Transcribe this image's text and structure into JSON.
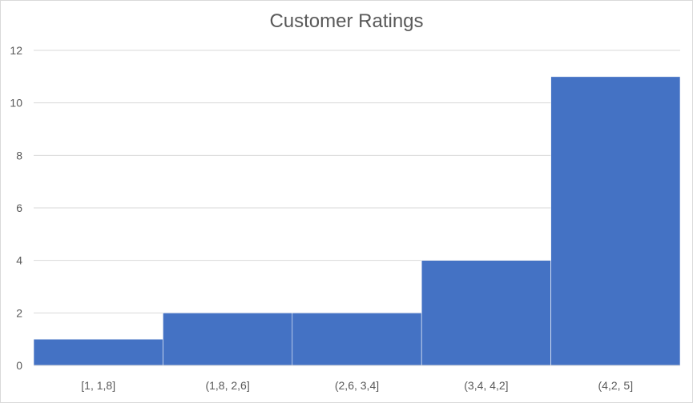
{
  "chart_data": {
    "type": "bar",
    "title": "Customer Ratings",
    "xlabel": "",
    "ylabel": "",
    "categories": [
      "[1, 1,8]",
      "(1,8, 2,6]",
      "(2,6, 3,4]",
      "(3,4, 4,2]",
      "(4,2, 5]"
    ],
    "values": [
      1,
      2,
      2,
      4,
      11
    ],
    "ylim": [
      0,
      12
    ],
    "yticks": [
      "0",
      "2",
      "4",
      "6",
      "8",
      "10",
      "12"
    ],
    "grid": true,
    "legend": "none",
    "bar_color": "#4472c4",
    "grid_color": "#d9d9d9",
    "text_color": "#595959"
  }
}
